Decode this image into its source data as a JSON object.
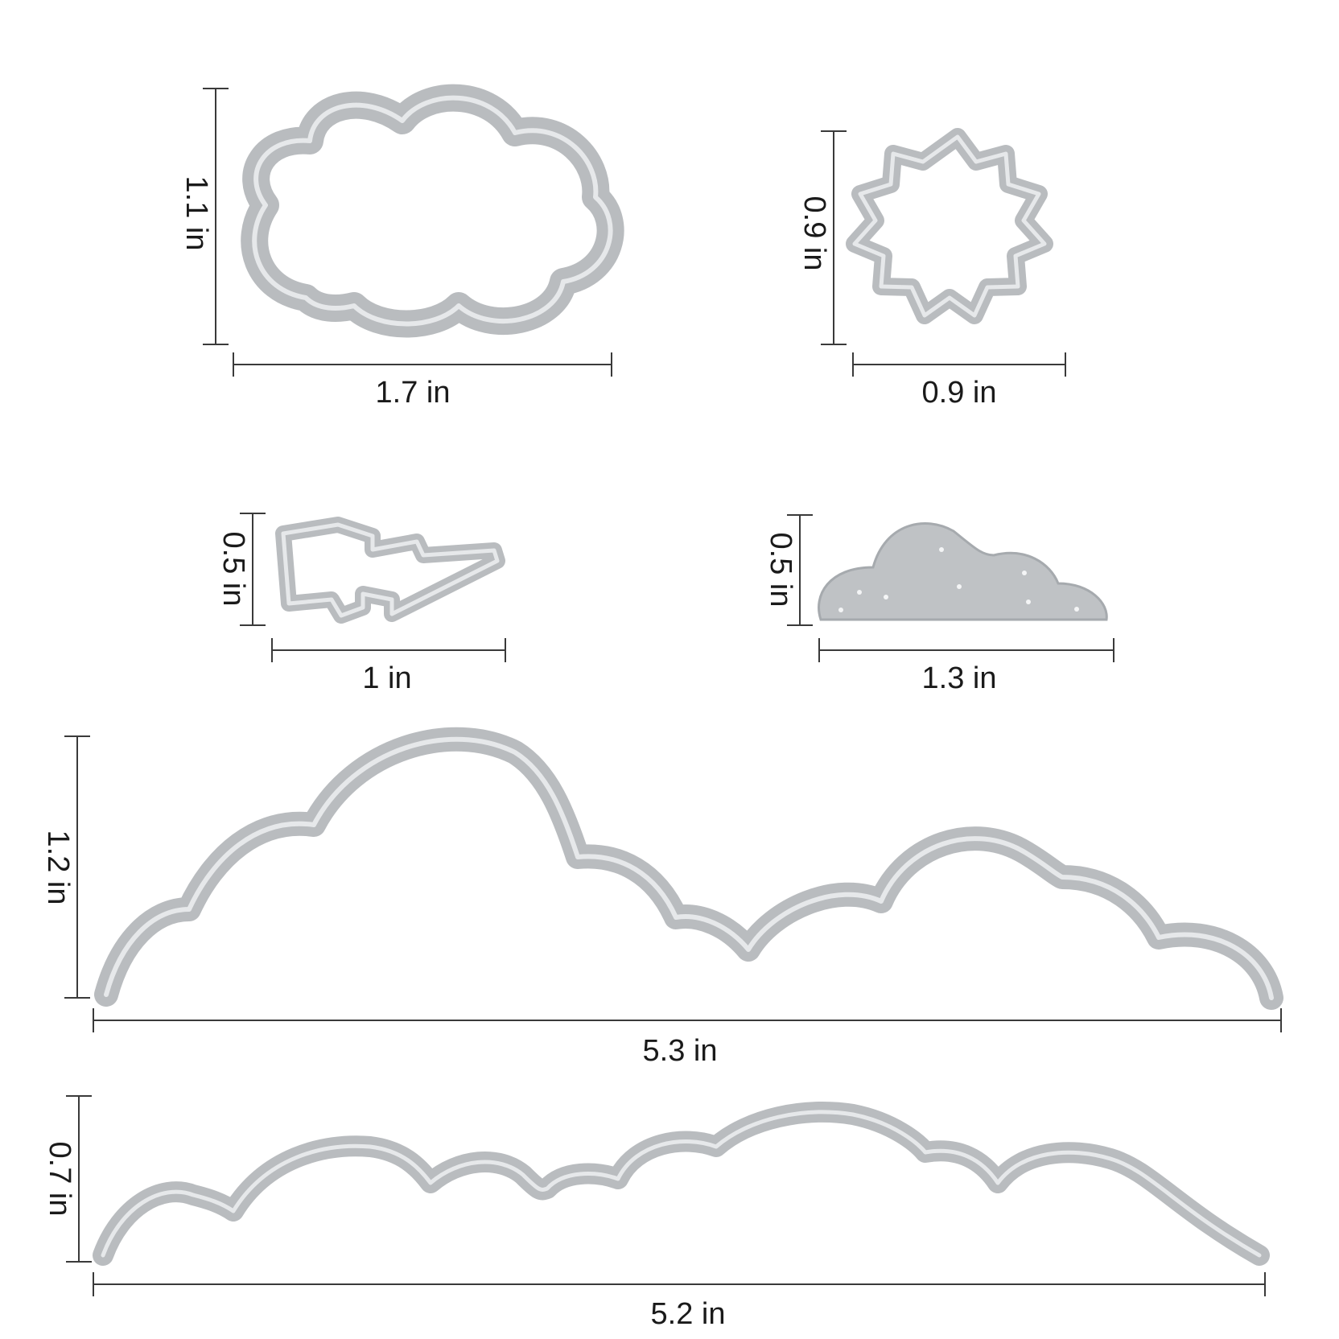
{
  "colors": {
    "background": "#ffffff",
    "metal": "#b9bcbf",
    "metal_highlight": "#e6e8ea",
    "dimension_line": "#3a3a3a",
    "text": "#1a1a1a"
  },
  "dies": [
    {
      "name": "cloud-frame-die",
      "width_label": "1.7 in",
      "height_label": "1.1 in"
    },
    {
      "name": "sun-frame-die",
      "width_label": "0.9 in",
      "height_label": "0.9 in"
    },
    {
      "name": "lightning-bolt-die",
      "width_label": "1 in",
      "height_label": "0.5 in"
    },
    {
      "name": "small-cloud-die",
      "width_label": "1.3 in",
      "height_label": "0.5 in"
    },
    {
      "name": "large-cloud-border-die",
      "width_label": "5.3 in",
      "height_label": "1.2 in"
    },
    {
      "name": "small-cloud-border-die",
      "width_label": "5.2 in",
      "height_label": "0.7 in"
    }
  ]
}
